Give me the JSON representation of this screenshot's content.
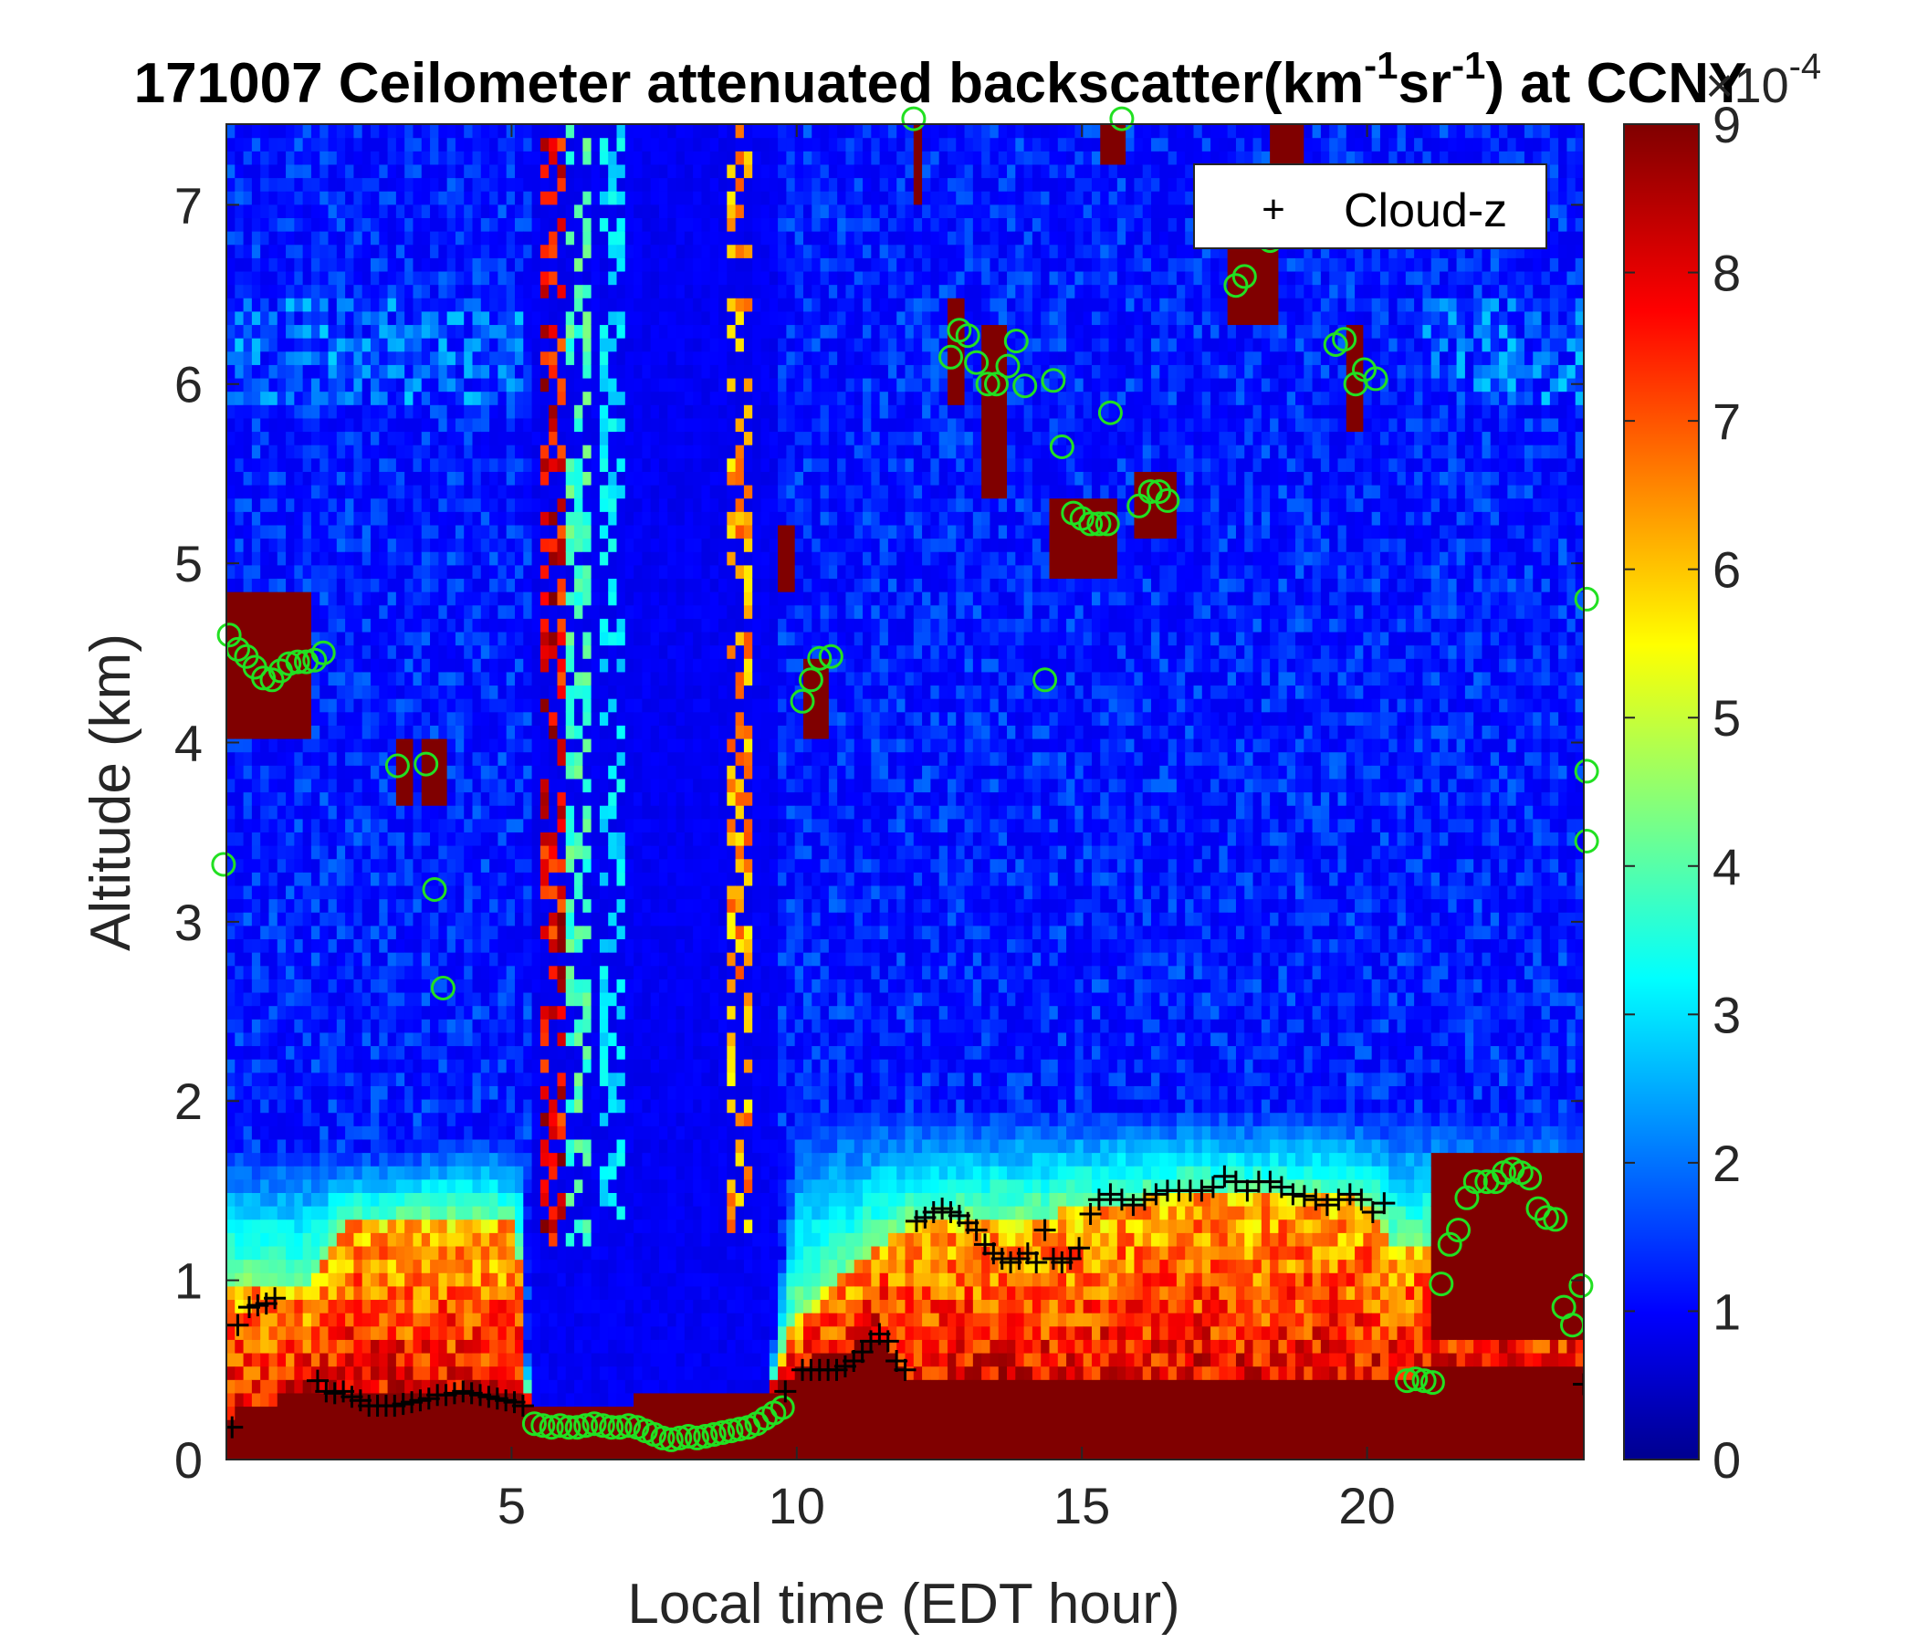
{
  "chart_data": {
    "type": "heatmap",
    "title_prefix": "171007 Ceilometer attenuated backscatter(km",
    "title_sup1": "-1",
    "title_mid": "sr",
    "title_sup2": "-1",
    "title_suffix": ") at CCNY",
    "xlabel": "Local time (EDT hour)",
    "ylabel": "Altitude (km)",
    "xlim": [
      0,
      23.8
    ],
    "ylim": [
      0,
      7.45
    ],
    "xticks": [
      5,
      10,
      15,
      20
    ],
    "xtick_labels": [
      "5",
      "10",
      "15",
      "20"
    ],
    "yticks": [
      0,
      1,
      2,
      3,
      4,
      5,
      6,
      7
    ],
    "ytick_labels": [
      "0",
      "1",
      "2",
      "3",
      "4",
      "5",
      "6",
      "7"
    ],
    "colorbar": {
      "range": [
        0,
        9
      ],
      "ticks": [
        0,
        1,
        2,
        3,
        4,
        5,
        6,
        7,
        8,
        9
      ],
      "tick_labels": [
        "0",
        "1",
        "2",
        "3",
        "4",
        "5",
        "6",
        "7",
        "8",
        "9"
      ],
      "exponent_base": "×10",
      "exponent": "-4",
      "colormap": "jet"
    },
    "legend": {
      "position": "top-right",
      "entries": [
        {
          "marker": "+",
          "label": "Cloud-z",
          "color": "#000000"
        }
      ]
    },
    "cloud_z_series": {
      "name": "Cloud-z",
      "marker": "+",
      "color": "#000000",
      "points": [
        [
          0.1,
          0.18
        ],
        [
          0.2,
          0.75
        ],
        [
          0.4,
          0.85
        ],
        [
          0.55,
          0.86
        ],
        [
          0.7,
          0.87
        ],
        [
          0.85,
          0.9
        ],
        [
          1.6,
          0.44
        ],
        [
          1.75,
          0.38
        ],
        [
          1.9,
          0.37
        ],
        [
          2.05,
          0.38
        ],
        [
          2.2,
          0.35
        ],
        [
          2.35,
          0.33
        ],
        [
          2.5,
          0.3
        ],
        [
          2.65,
          0.3
        ],
        [
          2.8,
          0.3
        ],
        [
          2.95,
          0.3
        ],
        [
          3.1,
          0.31
        ],
        [
          3.25,
          0.32
        ],
        [
          3.4,
          0.33
        ],
        [
          3.55,
          0.34
        ],
        [
          3.7,
          0.36
        ],
        [
          3.85,
          0.36
        ],
        [
          4.0,
          0.37
        ],
        [
          4.15,
          0.38
        ],
        [
          4.3,
          0.37
        ],
        [
          4.45,
          0.36
        ],
        [
          4.6,
          0.35
        ],
        [
          4.75,
          0.34
        ],
        [
          4.9,
          0.33
        ],
        [
          5.05,
          0.32
        ],
        [
          5.2,
          0.3
        ],
        [
          9.8,
          0.38
        ],
        [
          10.1,
          0.5
        ],
        [
          10.25,
          0.5
        ],
        [
          10.4,
          0.5
        ],
        [
          10.55,
          0.5
        ],
        [
          10.7,
          0.5
        ],
        [
          10.85,
          0.52
        ],
        [
          11.0,
          0.55
        ],
        [
          11.15,
          0.6
        ],
        [
          11.3,
          0.66
        ],
        [
          11.45,
          0.7
        ],
        [
          11.6,
          0.66
        ],
        [
          11.75,
          0.55
        ],
        [
          11.9,
          0.5
        ],
        [
          12.1,
          1.33
        ],
        [
          12.25,
          1.35
        ],
        [
          12.4,
          1.38
        ],
        [
          12.55,
          1.4
        ],
        [
          12.7,
          1.38
        ],
        [
          12.85,
          1.36
        ],
        [
          13.0,
          1.32
        ],
        [
          13.15,
          1.28
        ],
        [
          13.3,
          1.2
        ],
        [
          13.45,
          1.15
        ],
        [
          13.6,
          1.12
        ],
        [
          13.75,
          1.1
        ],
        [
          13.9,
          1.12
        ],
        [
          14.05,
          1.15
        ],
        [
          14.2,
          1.1
        ],
        [
          14.35,
          1.28
        ],
        [
          14.5,
          1.12
        ],
        [
          14.65,
          1.1
        ],
        [
          14.8,
          1.12
        ],
        [
          14.95,
          1.18
        ],
        [
          15.15,
          1.37
        ],
        [
          15.3,
          1.45
        ],
        [
          15.5,
          1.48
        ],
        [
          15.7,
          1.45
        ],
        [
          15.9,
          1.42
        ],
        [
          16.1,
          1.45
        ],
        [
          16.3,
          1.48
        ],
        [
          16.5,
          1.5
        ],
        [
          16.7,
          1.5
        ],
        [
          16.9,
          1.5
        ],
        [
          17.1,
          1.5
        ],
        [
          17.3,
          1.52
        ],
        [
          17.5,
          1.58
        ],
        [
          17.7,
          1.55
        ],
        [
          17.9,
          1.5
        ],
        [
          18.1,
          1.55
        ],
        [
          18.3,
          1.55
        ],
        [
          18.5,
          1.52
        ],
        [
          18.7,
          1.48
        ],
        [
          18.9,
          1.47
        ],
        [
          19.1,
          1.45
        ],
        [
          19.3,
          1.42
        ],
        [
          19.5,
          1.45
        ],
        [
          19.7,
          1.48
        ],
        [
          19.9,
          1.45
        ],
        [
          20.1,
          1.38
        ],
        [
          20.3,
          1.43
        ],
        [
          23.8,
          0.42
        ]
      ]
    },
    "cloud_height_series": {
      "marker": "circle",
      "color": "#22e022",
      "points": [
        [
          -0.05,
          3.32
        ],
        [
          0.05,
          4.6
        ],
        [
          0.2,
          4.52
        ],
        [
          0.35,
          4.48
        ],
        [
          0.5,
          4.42
        ],
        [
          0.65,
          4.36
        ],
        [
          0.8,
          4.35
        ],
        [
          0.95,
          4.4
        ],
        [
          1.1,
          4.44
        ],
        [
          1.25,
          4.45
        ],
        [
          1.4,
          4.45
        ],
        [
          1.55,
          4.46
        ],
        [
          1.7,
          4.5
        ],
        [
          3.0,
          3.87
        ],
        [
          3.5,
          3.88
        ],
        [
          3.65,
          3.18
        ],
        [
          3.8,
          2.63
        ],
        [
          5.4,
          0.2
        ],
        [
          5.55,
          0.19
        ],
        [
          5.7,
          0.18
        ],
        [
          5.85,
          0.19
        ],
        [
          6.0,
          0.18
        ],
        [
          6.15,
          0.18
        ],
        [
          6.3,
          0.19
        ],
        [
          6.45,
          0.2
        ],
        [
          6.6,
          0.19
        ],
        [
          6.75,
          0.18
        ],
        [
          6.9,
          0.18
        ],
        [
          7.05,
          0.19
        ],
        [
          7.2,
          0.18
        ],
        [
          7.35,
          0.16
        ],
        [
          7.5,
          0.14
        ],
        [
          7.65,
          0.12
        ],
        [
          7.8,
          0.11
        ],
        [
          7.95,
          0.12
        ],
        [
          8.1,
          0.13
        ],
        [
          8.25,
          0.12
        ],
        [
          8.4,
          0.13
        ],
        [
          8.55,
          0.14
        ],
        [
          8.7,
          0.15
        ],
        [
          8.85,
          0.16
        ],
        [
          9.0,
          0.17
        ],
        [
          9.15,
          0.18
        ],
        [
          9.3,
          0.2
        ],
        [
          9.45,
          0.23
        ],
        [
          9.6,
          0.26
        ],
        [
          9.75,
          0.29
        ],
        [
          10.1,
          4.23
        ],
        [
          10.25,
          4.35
        ],
        [
          10.4,
          4.47
        ],
        [
          10.6,
          4.48
        ],
        [
          12.05,
          7.48
        ],
        [
          12.7,
          6.15
        ],
        [
          12.85,
          6.3
        ],
        [
          13.0,
          6.27
        ],
        [
          13.15,
          6.12
        ],
        [
          13.35,
          6.0
        ],
        [
          13.5,
          6.0
        ],
        [
          13.7,
          6.1
        ],
        [
          13.85,
          6.24
        ],
        [
          14.0,
          5.99
        ],
        [
          14.35,
          4.35
        ],
        [
          14.5,
          6.02
        ],
        [
          14.65,
          5.65
        ],
        [
          14.85,
          5.28
        ],
        [
          15.0,
          5.25
        ],
        [
          15.15,
          5.22
        ],
        [
          15.3,
          5.22
        ],
        [
          15.45,
          5.22
        ],
        [
          15.5,
          5.84
        ],
        [
          15.7,
          7.48
        ],
        [
          16.0,
          5.32
        ],
        [
          16.2,
          5.4
        ],
        [
          16.35,
          5.4
        ],
        [
          16.5,
          5.35
        ],
        [
          17.7,
          6.55
        ],
        [
          17.85,
          6.6
        ],
        [
          18.3,
          6.8
        ],
        [
          19.45,
          6.22
        ],
        [
          19.6,
          6.25
        ],
        [
          19.8,
          6.0
        ],
        [
          19.95,
          6.08
        ],
        [
          20.15,
          6.03
        ],
        [
          20.7,
          0.44
        ],
        [
          20.85,
          0.45
        ],
        [
          21.0,
          0.44
        ],
        [
          21.15,
          0.43
        ],
        [
          21.3,
          0.98
        ],
        [
          21.45,
          1.2
        ],
        [
          21.6,
          1.28
        ],
        [
          21.75,
          1.46
        ],
        [
          21.9,
          1.55
        ],
        [
          22.1,
          1.55
        ],
        [
          22.25,
          1.55
        ],
        [
          22.4,
          1.6
        ],
        [
          22.55,
          1.62
        ],
        [
          22.7,
          1.6
        ],
        [
          22.85,
          1.57
        ],
        [
          23.0,
          1.4
        ],
        [
          23.15,
          1.35
        ],
        [
          23.3,
          1.34
        ],
        [
          23.45,
          0.85
        ],
        [
          23.6,
          0.75
        ],
        [
          23.75,
          0.97
        ],
        [
          23.85,
          4.8
        ],
        [
          23.85,
          3.84
        ],
        [
          23.85,
          3.45
        ]
      ]
    }
  }
}
